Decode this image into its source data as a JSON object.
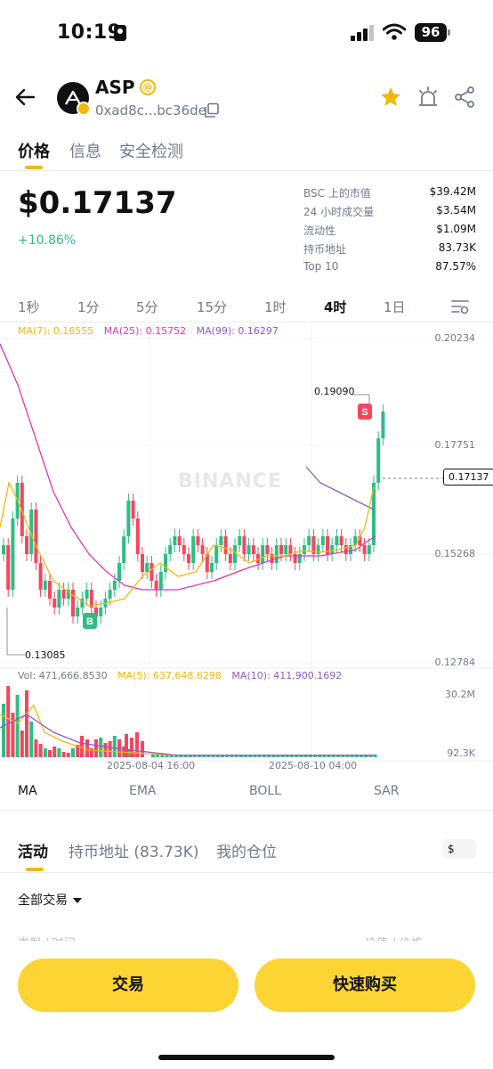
{
  "status_bar": {
    "time": "10:19",
    "battery": "96"
  },
  "header": {
    "symbol": "ASP",
    "address": "0xad8c...bc36de"
  },
  "tabs": [
    "价格",
    "信息",
    "安全检测"
  ],
  "price": {
    "value": "$0.17137",
    "change": "+10.86%"
  },
  "stats": [
    {
      "label": "BSC 上的市值",
      "value": "$39.42M"
    },
    {
      "label": "24 小时成交量",
      "value": "$3.54M"
    },
    {
      "label": "流动性",
      "value": "$1.09M"
    },
    {
      "label": "持币地址",
      "value": "83.73K"
    },
    {
      "label": "Top 10",
      "value": "87.57%"
    }
  ],
  "intervals": [
    "1秒",
    "1分",
    "5分",
    "15分",
    "1时",
    "4时",
    "1日"
  ],
  "active_interval": "4时",
  "chart": {
    "ma_legend": [
      {
        "text": "MA(7): 0.16555",
        "color": "#f0b90b"
      },
      {
        "text": "MA(25): 0.15752",
        "color": "#d63ab8"
      },
      {
        "text": "MA(99): 0.16297",
        "color": "#8b5cc7"
      }
    ],
    "price_axis": [
      "0.20234",
      "0.17751",
      "0.15268",
      "0.12784"
    ],
    "current_price": "0.17137",
    "high": "0.19090",
    "low": "0.13085",
    "watermark": "BINANCE",
    "buy_marker": "B",
    "sell_marker": "S",
    "vol_legend": [
      {
        "text": "Vol: 471,666.8530",
        "color": "#707a8a"
      },
      {
        "text": "MA(5): 637,648.6298",
        "color": "#f0b90b"
      },
      {
        "text": "MA(10): 411,900.1692",
        "color": "#8b5cc7"
      }
    ],
    "vol_axis": [
      "30.2M",
      "92.3K"
    ],
    "time_labels": [
      "2025-08-04 16:00",
      "2025-08-10 04:00"
    ],
    "colors": {
      "up": "#2ebd85",
      "down": "#f6465d"
    }
  },
  "indicators": [
    "MA",
    "EMA",
    "BOLL",
    "SAR"
  ],
  "activity": {
    "tabs": [
      "活动",
      "持币地址 (83.73K)",
      "我的仓位"
    ],
    "currency": "$",
    "filter": "全部交易",
    "col_left": "类型 / 时间",
    "col_right": "价值 / 价格"
  },
  "buttons": {
    "trade": "交易",
    "quick_buy": "快速购买"
  }
}
